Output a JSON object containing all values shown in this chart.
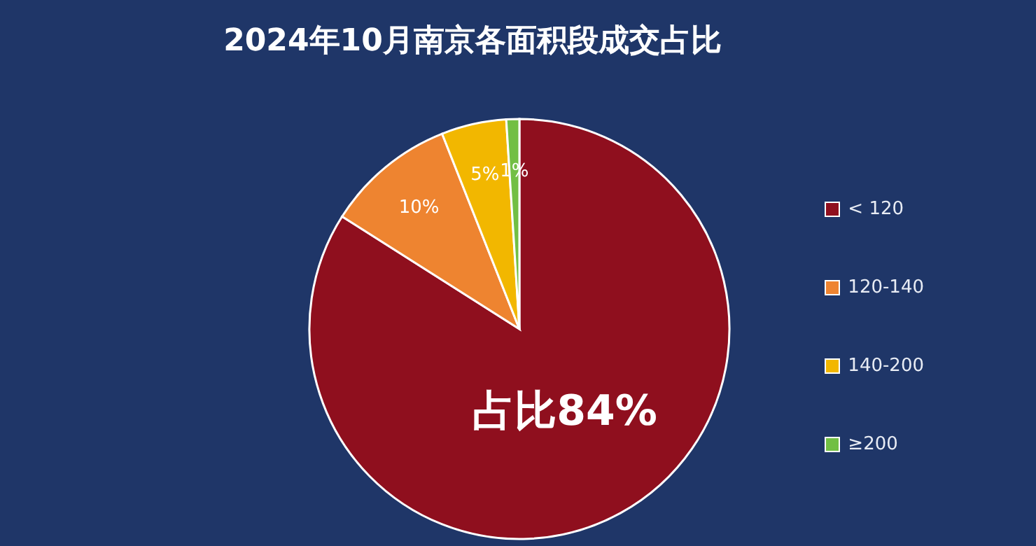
{
  "chart_data": {
    "type": "pie",
    "title": "2024年10月南京各面积段成交占比",
    "categories": [
      "< 120",
      "120-140",
      "140-200",
      "≥200"
    ],
    "values": [
      84,
      10,
      5,
      1
    ],
    "colors": [
      "#8f0f1e",
      "#ee8430",
      "#f2b700",
      "#72bf44"
    ],
    "value_labels": [
      "占比84%",
      "10%",
      "5%",
      "1%"
    ],
    "legend": "right"
  }
}
